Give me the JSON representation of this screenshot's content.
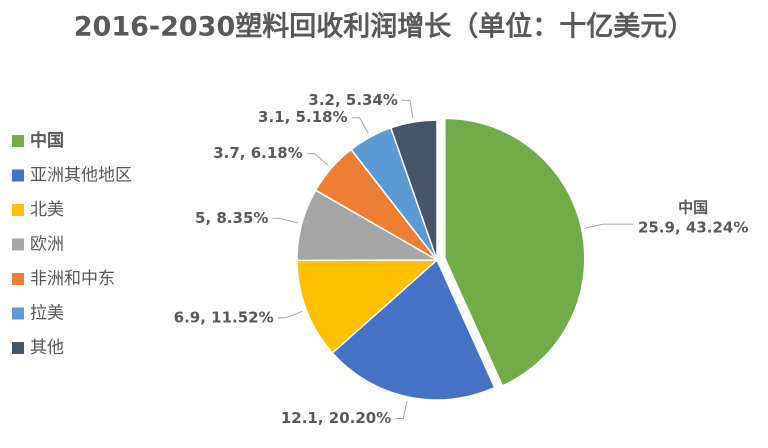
{
  "chart_data": {
    "type": "pie",
    "title": "2016-2030塑料回收利润增长（单位：十亿美元）",
    "categories": [
      "中国",
      "亚洲其他地区",
      "北美",
      "欧洲",
      "非洲和中东",
      "拉美",
      "其他"
    ],
    "values": [
      25.9,
      12.1,
      6.9,
      5,
      3.7,
      3.1,
      3.2
    ],
    "value_labels": [
      "25.9, 43.24%",
      "12.1, 20.20%",
      "6.9, 11.52%",
      "5, 8.35%",
      "3.7, 6.18%",
      "3.1, 5.18%",
      "3.2, 5.34%"
    ],
    "colors": [
      "#70ad47",
      "#4472c4",
      "#ffc000",
      "#a5a5a5",
      "#ed7d31",
      "#5b9bd5",
      "#44546a"
    ],
    "explode": [
      true,
      false,
      false,
      false,
      false,
      false,
      false
    ],
    "highlight_color": "#c00000",
    "legend": "left"
  }
}
